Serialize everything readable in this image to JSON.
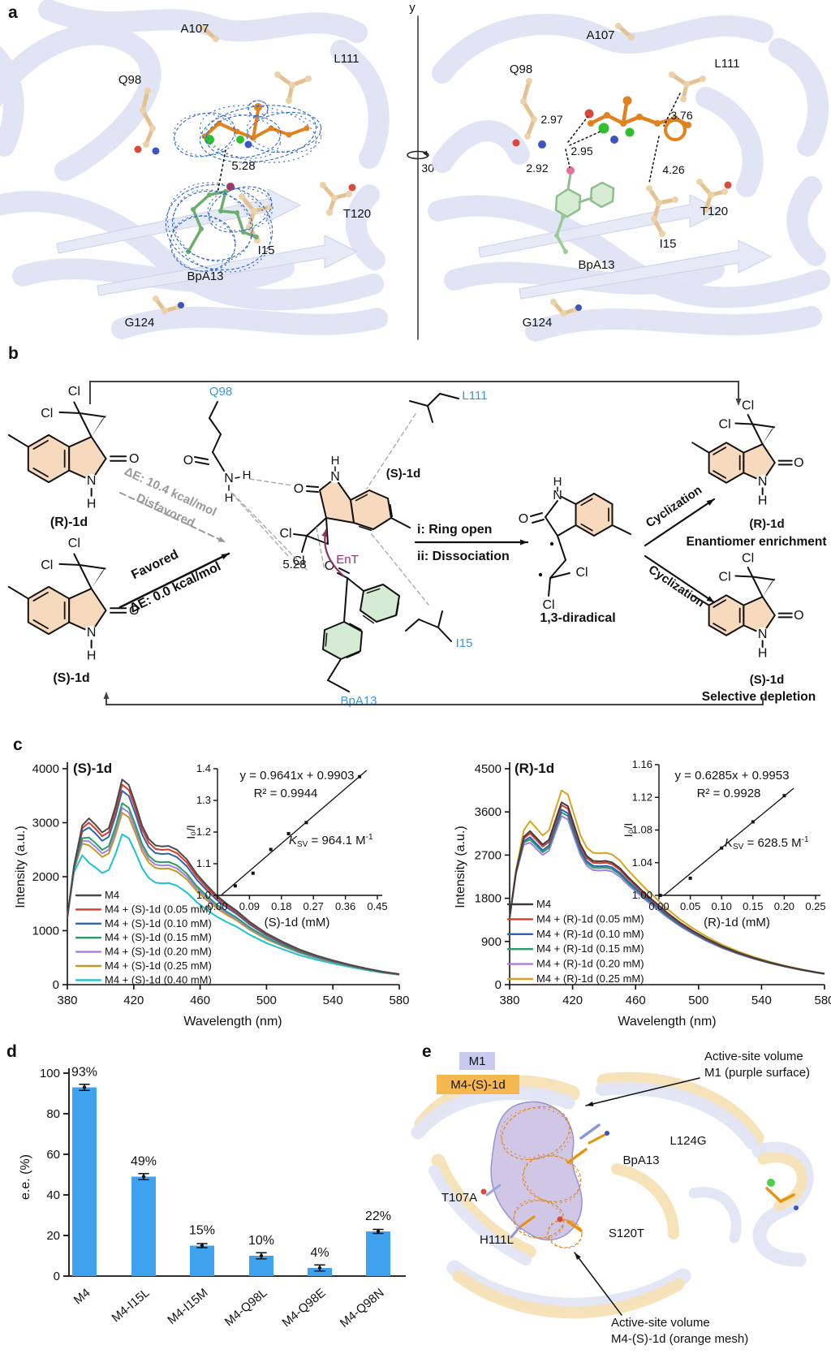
{
  "panel_labels": {
    "a": "a",
    "b": "b",
    "c": "c",
    "d": "d",
    "e": "e"
  },
  "panel_a": {
    "rotation": {
      "axis": "y",
      "angle": "30°"
    },
    "left": {
      "q98": "Q98",
      "a107": "A107",
      "l111": "L111",
      "t120": "T120",
      "i15": "I15",
      "g124": "G124",
      "bpa13": "BpA13",
      "distance": "5.28"
    },
    "right": {
      "q98": "Q98",
      "a107": "A107",
      "l111": "L111",
      "t120": "T120",
      "i15": "I15",
      "g124": "G124",
      "bpa13": "BpA13",
      "d_297": "2.97",
      "d_295": "2.95",
      "d_292": "2.92",
      "d_376": "3.76",
      "d_426": "4.26"
    }
  },
  "panel_b": {
    "atoms": {
      "cl": "Cl",
      "o": "O",
      "n": "N",
      "h": "H",
      "radical": "•"
    },
    "residues": {
      "q98": "Q98",
      "l111": "L111",
      "i15": "I15",
      "bpa13": "BpA13"
    },
    "molecules": {
      "r1d": "(R)-1d",
      "s1d": "(S)-1d",
      "s1d_center": "(S)-1d",
      "diradical": "1,3-diradical",
      "r1d_product": "(R)-1d",
      "s1d_product": "(S)-1d"
    },
    "pathways": {
      "disfavored_energy": "ΔE: 10.4 kcal/mol",
      "disfavored": "Disfavored",
      "favored": "Favored",
      "favored_energy": "ΔE: 0.0 kcal/mol",
      "step_i": "i: Ring open",
      "step_ii": "ii: Dissociation",
      "cyclization_top": "Cyclization",
      "cyclization_bottom": "Cyclization",
      "enrichment": "Enantiomer enrichment",
      "depletion": "Selective depletion",
      "ent": "EnT",
      "distance": "5.28"
    }
  },
  "panel_e": {
    "chip_m1": "M1",
    "chip_m4": "M4-(S)-1d",
    "chip_m1_bg": "#c9cbee",
    "chip_m4_bg": "#f5b851",
    "ann_top_1": "Active-site volume",
    "ann_top_2": "M1 (purple surface)",
    "ann_bottom_1": "Active-site volume",
    "ann_bottom_2": "M4-(S)-1d (orange mesh)",
    "residues": {
      "t107a": "T107A",
      "h111l": "H111L",
      "bpa13": "BpA13",
      "l124g": "L124G",
      "s120t": "S120T"
    }
  },
  "chart_data": [
    {
      "id": "spectra_S",
      "type": "line",
      "title": "(S)-1d",
      "xlabel": "Wavelength (nm)",
      "ylabel": "Intensity (a.u.)",
      "xlim": [
        380,
        580
      ],
      "ylim": [
        0,
        4000
      ],
      "x_ticks": [
        380,
        420,
        460,
        500,
        540,
        580
      ],
      "y_ticks": [
        0,
        1000,
        2000,
        3000,
        4000
      ],
      "legend_position": "lower-left-inside",
      "base_points": [
        [
          380,
          1250
        ],
        [
          384,
          2200
        ],
        [
          389,
          2950
        ],
        [
          393,
          3080
        ],
        [
          397,
          2960
        ],
        [
          401,
          2820
        ],
        [
          405,
          2900
        ],
        [
          409,
          3300
        ],
        [
          413,
          3800
        ],
        [
          417,
          3700
        ],
        [
          421,
          3350
        ],
        [
          425,
          2950
        ],
        [
          429,
          2700
        ],
        [
          433,
          2580
        ],
        [
          437,
          2560
        ],
        [
          441,
          2570
        ],
        [
          446,
          2500
        ],
        [
          452,
          2320
        ],
        [
          458,
          2050
        ],
        [
          464,
          1840
        ],
        [
          470,
          1650
        ],
        [
          476,
          1500
        ],
        [
          482,
          1370
        ],
        [
          490,
          1160
        ],
        [
          500,
          950
        ],
        [
          510,
          790
        ],
        [
          520,
          650
        ],
        [
          530,
          540
        ],
        [
          540,
          450
        ],
        [
          550,
          370
        ],
        [
          560,
          300
        ],
        [
          570,
          240
        ],
        [
          580,
          195
        ]
      ],
      "series": [
        {
          "label": "M4",
          "color": "#4a4a4a",
          "scale": 1.0
        },
        {
          "label": "M4 + (S)-1d (0.05 mM)",
          "color": "#d83a2c",
          "scale": 0.975
        },
        {
          "label": "M4 + (S)-1d (0.10 mM)",
          "color": "#2e62b4",
          "scale": 0.945
        },
        {
          "label": "M4 + (S)-1d (0.15 mM)",
          "color": "#2a9c68",
          "scale": 0.885
        },
        {
          "label": "M4 + (S)-1d (0.20 mM)",
          "color": "#a87fe0",
          "scale": 0.862
        },
        {
          "label": "M4 + (S)-1d (0.25 mM)",
          "color": "#c39a1f",
          "scale": 0.838
        },
        {
          "label": "M4 + (S)-1d (0.40 mM)",
          "color": "#1fc2cf",
          "scale": 0.733
        }
      ]
    },
    {
      "id": "inset_S",
      "type": "scatter",
      "eq": "y = 0.9641x + 0.9903",
      "r2": "R² = 0.9944",
      "ksv_k": "K",
      "ksv_sub": "SV",
      "ksv_mid": " = 964.1 M",
      "ksv_sup": "-1",
      "xlabel": "(S)-1d (mM)",
      "ylabel": "I₀/I",
      "xlim": [
        0,
        0.45
      ],
      "ylim": [
        1.0,
        1.4
      ],
      "x_ticks": [
        "0.00",
        "0.09",
        "0.18",
        "0.27",
        "0.36",
        "0.45"
      ],
      "y_ticks": [
        "1.0",
        "1.1",
        "1.2",
        "1.3",
        "1.4"
      ],
      "points": [
        [
          0.05,
          1.03
        ],
        [
          0.1,
          1.07
        ],
        [
          0.15,
          1.145
        ],
        [
          0.2,
          1.195
        ],
        [
          0.25,
          1.23
        ],
        [
          0.4,
          1.375
        ]
      ],
      "fit": [
        [
          0.01,
          1.0
        ],
        [
          0.42,
          1.395
        ]
      ]
    },
    {
      "id": "spectra_R",
      "type": "line",
      "title": "(R)-1d",
      "xlabel": "Wavelength (nm)",
      "ylabel": "Intensity (a.u.)",
      "xlim": [
        380,
        580
      ],
      "ylim": [
        0,
        4500
      ],
      "x_ticks": [
        380,
        420,
        460,
        500,
        540,
        580
      ],
      "y_ticks": [
        0,
        900,
        1800,
        2700,
        3600,
        4500
      ],
      "legend_position": "lower-left-inside",
      "base_points": [
        [
          380,
          1400
        ],
        [
          384,
          2350
        ],
        [
          389,
          3080
        ],
        [
          393,
          3200
        ],
        [
          397,
          3060
        ],
        [
          401,
          2920
        ],
        [
          405,
          3020
        ],
        [
          409,
          3420
        ],
        [
          413,
          3800
        ],
        [
          417,
          3720
        ],
        [
          421,
          3320
        ],
        [
          425,
          2920
        ],
        [
          429,
          2680
        ],
        [
          433,
          2580
        ],
        [
          437,
          2570
        ],
        [
          441,
          2580
        ],
        [
          445,
          2550
        ],
        [
          450,
          2430
        ],
        [
          455,
          2250
        ],
        [
          460,
          2090
        ],
        [
          466,
          1900
        ],
        [
          472,
          1730
        ],
        [
          480,
          1500
        ],
        [
          488,
          1300
        ],
        [
          496,
          1130
        ],
        [
          505,
          960
        ],
        [
          515,
          800
        ],
        [
          525,
          670
        ],
        [
          535,
          560
        ],
        [
          545,
          465
        ],
        [
          555,
          385
        ],
        [
          565,
          315
        ],
        [
          575,
          255
        ],
        [
          580,
          230
        ]
      ],
      "series": [
        {
          "label": "M4",
          "color": "#3d3d3d",
          "scale": 1.0
        },
        {
          "label": "M4 + (R)-1d (0.05 mM)",
          "color": "#d83a2c",
          "scale": 0.985
        },
        {
          "label": "M4 + (R)-1d (0.10 mM)",
          "color": "#2e62b4",
          "scale": 0.96
        },
        {
          "label": "M4 + (R)-1d (0.15 mM)",
          "color": "#2a9c68",
          "scale": 0.945
        },
        {
          "label": "M4 + (R)-1d (0.20 mM)",
          "color": "#a87fe0",
          "scale": 0.925
        },
        {
          "label": "M4 + (R)-1d (0.25 mM)",
          "color": "#d8a41b",
          "scale": 1.065
        }
      ]
    },
    {
      "id": "inset_R",
      "type": "scatter",
      "eq": "y = 0.6285x + 0.9953",
      "r2": "R² = 0.9928",
      "ksv_k": "K",
      "ksv_sub": "SV",
      "ksv_mid": " = 628.5 M",
      "ksv_sup": "-1",
      "xlabel": "(R)-1d (mM)",
      "ylabel": "I₀/I",
      "xlim": [
        0,
        0.25
      ],
      "ylim": [
        1.0,
        1.16
      ],
      "x_ticks": [
        "0.00",
        "0.05",
        "0.10",
        "0.15",
        "0.20",
        "0.25"
      ],
      "y_ticks": [
        "1.00",
        "1.04",
        "1.08",
        "1.12",
        "1.16"
      ],
      "points": [
        [
          0.002,
          1.0
        ],
        [
          0.05,
          1.021
        ],
        [
          0.1,
          1.058
        ],
        [
          0.15,
          1.09
        ],
        [
          0.2,
          1.122
        ]
      ],
      "fit": [
        [
          0.008,
          1.0
        ],
        [
          0.215,
          1.131
        ]
      ]
    },
    {
      "id": "ee_bar",
      "type": "bar",
      "ylabel": "e.e. (%)",
      "ylim": [
        0,
        100
      ],
      "y_ticks": [
        0,
        20,
        40,
        60,
        80,
        100
      ],
      "categories": [
        "M4",
        "M4-I15L",
        "M4-I15M",
        "M4-Q98L",
        "M4-Q98E",
        "M4-Q98N"
      ],
      "values": [
        93,
        49,
        15,
        10,
        4,
        22
      ],
      "labels": [
        "93%",
        "49%",
        "15%",
        "10%",
        "4%",
        "22%"
      ],
      "errors": [
        1.5,
        1.5,
        1,
        1.5,
        1.5,
        1
      ],
      "bar_color": "#3fa2ee"
    }
  ]
}
